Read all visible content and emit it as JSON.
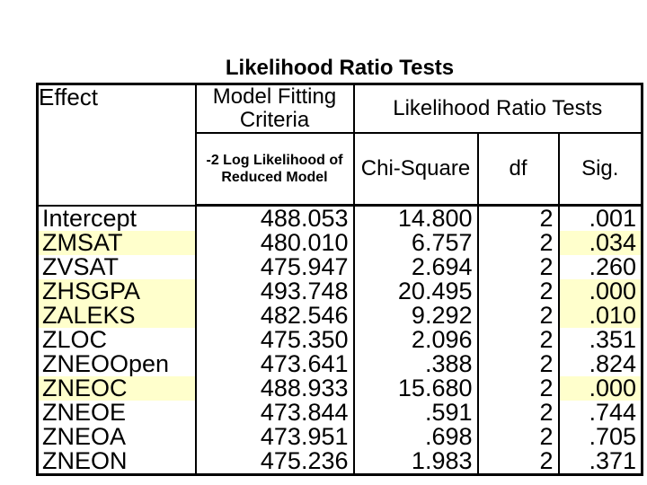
{
  "title": "Likelihood Ratio Tests",
  "colors": {
    "background": "#FFFFFF",
    "text": "#000000",
    "table_border": "#000000",
    "highlight": "#FFFFCC"
  },
  "table": {
    "header": {
      "effect": "Effect",
      "model_fitting_criteria": "Model Fitting Criteria",
      "likelihood_ratio_tests": "Likelihood Ratio Tests",
      "neg2_log_likelihood": "-2 Log Likelihood of Reduced Model",
      "chi_square": "Chi-Square",
      "df": "df",
      "sig": "Sig."
    },
    "rows": [
      {
        "effect": "Intercept",
        "neg2ll": "488.053",
        "chi_square": "14.800",
        "df": "2",
        "sig": ".001",
        "highlighted": false
      },
      {
        "effect": "ZMSAT",
        "neg2ll": "480.010",
        "chi_square": "6.757",
        "df": "2",
        "sig": ".034",
        "highlighted": true
      },
      {
        "effect": "ZVSAT",
        "neg2ll": "475.947",
        "chi_square": "2.694",
        "df": "2",
        "sig": ".260",
        "highlighted": false
      },
      {
        "effect": "ZHSGPA",
        "neg2ll": "493.748",
        "chi_square": "20.495",
        "df": "2",
        "sig": ".000",
        "highlighted": true
      },
      {
        "effect": "ZALEKS",
        "neg2ll": "482.546",
        "chi_square": "9.292",
        "df": "2",
        "sig": ".010",
        "highlighted": true
      },
      {
        "effect": "ZLOC",
        "neg2ll": "475.350",
        "chi_square": "2.096",
        "df": "2",
        "sig": ".351",
        "highlighted": false
      },
      {
        "effect": "ZNEOOpen",
        "neg2ll": "473.641",
        "chi_square": ".388",
        "df": "2",
        "sig": ".824",
        "highlighted": false
      },
      {
        "effect": "ZNEOC",
        "neg2ll": "488.933",
        "chi_square": "15.680",
        "df": "2",
        "sig": ".000",
        "highlighted": true
      },
      {
        "effect": "ZNEOE",
        "neg2ll": "473.844",
        "chi_square": ".591",
        "df": "2",
        "sig": ".744",
        "highlighted": false
      },
      {
        "effect": "ZNEOA",
        "neg2ll": "473.951",
        "chi_square": ".698",
        "df": "2",
        "sig": ".705",
        "highlighted": false
      },
      {
        "effect": "ZNEON",
        "neg2ll": "475.236",
        "chi_square": "1.983",
        "df": "2",
        "sig": ".371",
        "highlighted": false
      }
    ]
  }
}
